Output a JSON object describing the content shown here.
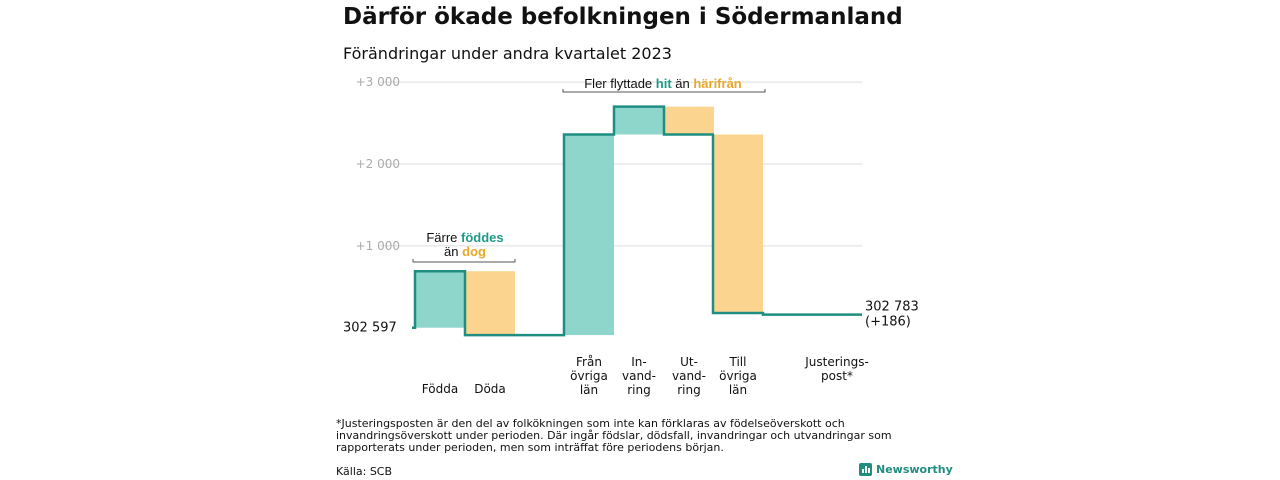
{
  "title": "Därför ökade befolkningen i Södermanland",
  "subtitle": "Förändringar under andra kvartalet 2023",
  "footnote": "*Justeringsposten är den del av folkökningen som inte kan förklaras av födelseöverskott och invandringsöverskott under perioden. Där ingår födslar, dödsfall, invandringar och utvandringar som rapporterats under perioden, men som inträffat före periodens början.",
  "source": "Källa: SCB",
  "brand": {
    "name": "Newsworthy",
    "icon": "bar-chart-logo-icon"
  },
  "colors": {
    "teal": "#8ed5cb",
    "orange": "#fbd58f",
    "line": "#1f8e81",
    "hit_text": "#1f9a8a",
    "harifran_text": "#e8a82a",
    "grid": "#dddddd",
    "axis_label": "#aaaaaa"
  },
  "chart_data": {
    "type": "waterfall",
    "baseline_value": 302597,
    "start_label": "302 597",
    "end_value": 302783,
    "end_label": [
      "302 783",
      "(+186)"
    ],
    "y_ticks": [
      {
        "value": 1000,
        "label": "+1  000"
      },
      {
        "value": 2000,
        "label": "+2  000"
      },
      {
        "value": 3000,
        "label": "+3  000"
      }
    ],
    "ylim": [
      -150,
      3050
    ],
    "grid": true,
    "steps": [
      {
        "label": [
          "Födda"
        ],
        "value": 690,
        "color": "teal"
      },
      {
        "label": [
          "Döda"
        ],
        "value": -780,
        "color": "orange"
      },
      {
        "label": [
          "Från",
          "övriga",
          "län"
        ],
        "value": 2450,
        "color": "teal"
      },
      {
        "label": [
          "In-",
          "vand-",
          "ring"
        ],
        "value": 340,
        "color": "teal"
      },
      {
        "label": [
          "Ut-",
          "vand-",
          "ring"
        ],
        "value": -340,
        "color": "orange"
      },
      {
        "label": [
          "Till",
          "övriga",
          "län"
        ],
        "value": -2180,
        "color": "orange"
      },
      {
        "label": [
          ""
        ],
        "value": -20,
        "color": "none"
      },
      {
        "label": [
          "Justerings-",
          "post*"
        ],
        "value": 0,
        "color": "none"
      }
    ],
    "annotations": [
      {
        "lines": [
          [
            {
              "text": "Färre ",
              "color": "text"
            },
            {
              "text": "föddes",
              "color": "hit_text"
            }
          ],
          [
            {
              "text": "än ",
              "color": "text"
            },
            {
              "text": "dog",
              "color": "harifran_text"
            }
          ]
        ]
      },
      {
        "lines": [
          [
            {
              "text": "Fler flyttade ",
              "color": "text"
            },
            {
              "text": "hit",
              "color": "hit_text"
            },
            {
              "text": " än ",
              "color": "text"
            },
            {
              "text": "härifrån",
              "color": "harifran_text"
            }
          ]
        ]
      }
    ]
  }
}
